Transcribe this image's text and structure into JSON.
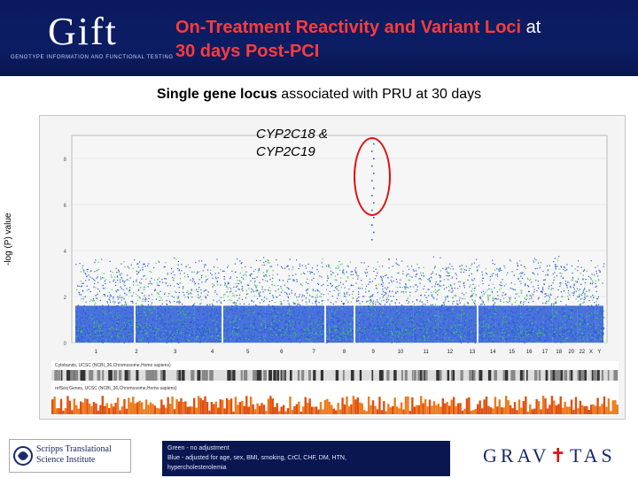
{
  "header": {
    "logo_text": "Gift",
    "logo_tagline": "GENOTYPE INFORMATION AND FUNCTIONAL TESTING",
    "title_main": "On-Treatment Reactivity and Variant Loci",
    "title_at": " at",
    "title_line2": "30 days Post-PCI"
  },
  "subtitle": {
    "bold": "Single gene locus",
    "rest": " associated with PRU at 30 days"
  },
  "plot": {
    "ylabel": "-log (P) value",
    "gene_line1": "CYP2C18 &",
    "gene_line2": "CYP2C19",
    "y_ticks": [
      "0",
      "2",
      "4",
      "6",
      "8"
    ],
    "chromosomes": [
      "1",
      "2",
      "3",
      "4",
      "5",
      "6",
      "7",
      "8",
      "9",
      "10",
      "11",
      "12",
      "13",
      "14",
      "15",
      "16",
      "17",
      "18",
      "20",
      "22",
      "X",
      "Y"
    ],
    "track1": "Cytobands, UCSC (NCBI_36,Chromosome,Homo sapiens)",
    "track2": "refSeq Genes, UCSC (NCBI_36,Chromosome,Homo sapiens)",
    "colors": {
      "blue": "#2a5bd7",
      "green": "#3fd24a",
      "circle": "#e01010"
    }
  },
  "footer": {
    "scripps_name_1": "Scripps Translational",
    "scripps_name_2": "Science Institute",
    "legend_1": "Green - no adjustment",
    "legend_2": "Blue - adjusted for age, sex, BMI, smoking, CrCl, CHF, DM, HTN,",
    "legend_3": "hypercholesterolemia",
    "gravitas_a": "GRAV",
    "gravitas_b": "TAS"
  }
}
